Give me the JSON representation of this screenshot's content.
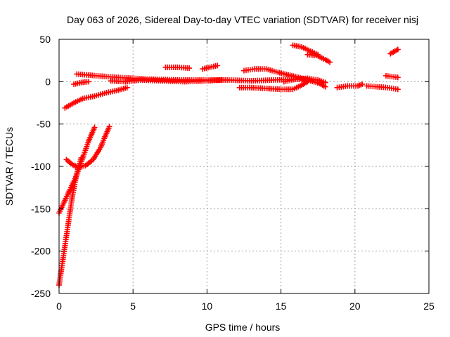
{
  "chart_data": {
    "type": "scatter",
    "title": "Day 063 of 2026, Sidereal Day-to-day VTEC variation (SDTVAR) for receiver nisj",
    "xlabel": "GPS time / hours",
    "ylabel": "SDTVAR / TECUs",
    "xlim": [
      0,
      25
    ],
    "ylim": [
      -250,
      50
    ],
    "xticks": [
      0,
      5,
      10,
      15,
      20,
      25
    ],
    "yticks": [
      -250,
      -200,
      -150,
      -100,
      -50,
      0,
      50
    ],
    "grid": true,
    "marker": "+",
    "color": "#ff0000",
    "series": [
      {
        "points": [
          [
            0,
            -240
          ],
          [
            0.3,
            -205
          ],
          [
            0.6,
            -170
          ],
          [
            0.9,
            -135
          ],
          [
            1.2,
            -108
          ],
          [
            1.5,
            -90
          ]
        ]
      },
      {
        "points": [
          [
            0,
            -155
          ],
          [
            0.4,
            -140
          ],
          [
            0.8,
            -125
          ],
          [
            1.2,
            -110
          ],
          [
            1.6,
            -90
          ],
          [
            2.0,
            -70
          ],
          [
            2.4,
            -54
          ]
        ]
      },
      {
        "points": [
          [
            0.5,
            -92
          ],
          [
            0.9,
            -98
          ],
          [
            1.3,
            -101
          ],
          [
            1.8,
            -99
          ],
          [
            2.3,
            -92
          ],
          [
            2.8,
            -78
          ],
          [
            3.1,
            -65
          ],
          [
            3.4,
            -53
          ]
        ]
      },
      {
        "points": [
          [
            0.4,
            -31
          ],
          [
            1.0,
            -25
          ],
          [
            1.6,
            -20
          ],
          [
            2.4,
            -17
          ],
          [
            3.2,
            -13
          ],
          [
            4.0,
            -10
          ],
          [
            4.6,
            -7
          ]
        ]
      },
      {
        "points": [
          [
            1.0,
            -3
          ],
          [
            1.5,
            -1
          ],
          [
            2.0,
            0
          ]
        ]
      },
      {
        "points": [
          [
            1.2,
            9
          ],
          [
            2.5,
            7
          ],
          [
            4.0,
            5
          ],
          [
            6.0,
            3
          ],
          [
            8.0,
            2
          ],
          [
            10.0,
            2
          ],
          [
            11.5,
            2
          ],
          [
            13.0,
            1
          ],
          [
            14.5,
            2
          ],
          [
            16.0,
            3
          ],
          [
            17.5,
            2
          ],
          [
            18.0,
            -1
          ]
        ]
      },
      {
        "points": [
          [
            3.5,
            1
          ],
          [
            4.5,
            0
          ],
          [
            5.5,
            2
          ],
          [
            7.0,
            1
          ],
          [
            8.5,
            0
          ],
          [
            10.0,
            1
          ],
          [
            11.0,
            2
          ]
        ]
      },
      {
        "points": [
          [
            7.2,
            17
          ],
          [
            8.0,
            17
          ],
          [
            8.8,
            16
          ]
        ]
      },
      {
        "points": [
          [
            9.7,
            15
          ],
          [
            10.2,
            17
          ],
          [
            10.7,
            19
          ]
        ]
      },
      {
        "points": [
          [
            12.5,
            13
          ],
          [
            13.2,
            15
          ],
          [
            14.0,
            15
          ],
          [
            14.8,
            11
          ],
          [
            15.5,
            8
          ],
          [
            16.2,
            5
          ],
          [
            17.0,
            1
          ],
          [
            17.6,
            -2
          ],
          [
            18.0,
            -6
          ]
        ]
      },
      {
        "points": [
          [
            12.2,
            -7
          ],
          [
            13.0,
            -7
          ],
          [
            14.0,
            -8
          ],
          [
            15.0,
            -9
          ],
          [
            15.8,
            -9
          ],
          [
            16.3,
            -5
          ],
          [
            16.8,
            0
          ]
        ]
      },
      {
        "points": [
          [
            15.2,
            0
          ],
          [
            16.0,
            3
          ],
          [
            16.8,
            4
          ],
          [
            17.5,
            2
          ]
        ]
      },
      {
        "points": [
          [
            15.8,
            43
          ],
          [
            16.4,
            41
          ],
          [
            17.0,
            36
          ],
          [
            17.5,
            32
          ]
        ]
      },
      {
        "points": [
          [
            16.8,
            32
          ],
          [
            17.4,
            31
          ],
          [
            18.0,
            26
          ],
          [
            18.3,
            23
          ]
        ]
      },
      {
        "points": [
          [
            18.8,
            -7
          ],
          [
            19.5,
            -5
          ],
          [
            20.2,
            -5
          ],
          [
            20.5,
            -3
          ]
        ]
      },
      {
        "points": [
          [
            20.8,
            -5
          ],
          [
            21.5,
            -6
          ],
          [
            22.2,
            -7
          ],
          [
            22.9,
            -9
          ]
        ]
      },
      {
        "points": [
          [
            22.1,
            7
          ],
          [
            22.5,
            6
          ],
          [
            22.9,
            5
          ]
        ]
      },
      {
        "points": [
          [
            22.4,
            33
          ],
          [
            22.7,
            36
          ],
          [
            22.9,
            38
          ]
        ]
      }
    ]
  }
}
